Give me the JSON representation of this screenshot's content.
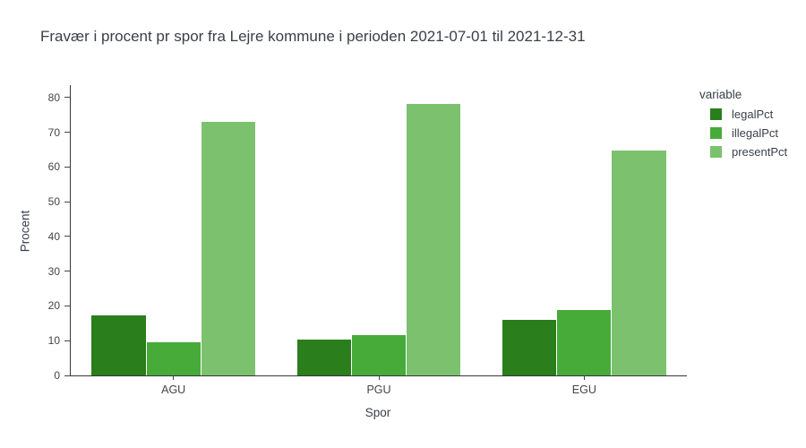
{
  "chart_data": {
    "type": "bar",
    "title": "Fravær i procent pr spor fra Lejre kommune i perioden 2021-07-01 til 2021-12-31",
    "xlabel": "Spor",
    "ylabel": "Procent",
    "categories": [
      "AGU",
      "PGU",
      "EGU"
    ],
    "series": [
      {
        "name": "legalPct",
        "color": "#2a7e1b",
        "values": [
          17.3,
          10.3,
          16.1
        ]
      },
      {
        "name": "illegalPct",
        "color": "#47ab39",
        "values": [
          9.5,
          11.6,
          18.9
        ]
      },
      {
        "name": "presentPct",
        "color": "#7cc26e",
        "values": [
          72.9,
          78.2,
          64.7
        ]
      }
    ],
    "ylim": [
      0,
      83.6
    ],
    "yticks": [
      0,
      10,
      20,
      30,
      40,
      50,
      60,
      70,
      80
    ],
    "grid": false,
    "legend_title": "variable",
    "legend_position": "top-right-outside",
    "colors": {
      "axis_line": "#33363b",
      "tick_text": "#444444",
      "title_text": "#3a3f47",
      "background": "#ffffff"
    }
  }
}
